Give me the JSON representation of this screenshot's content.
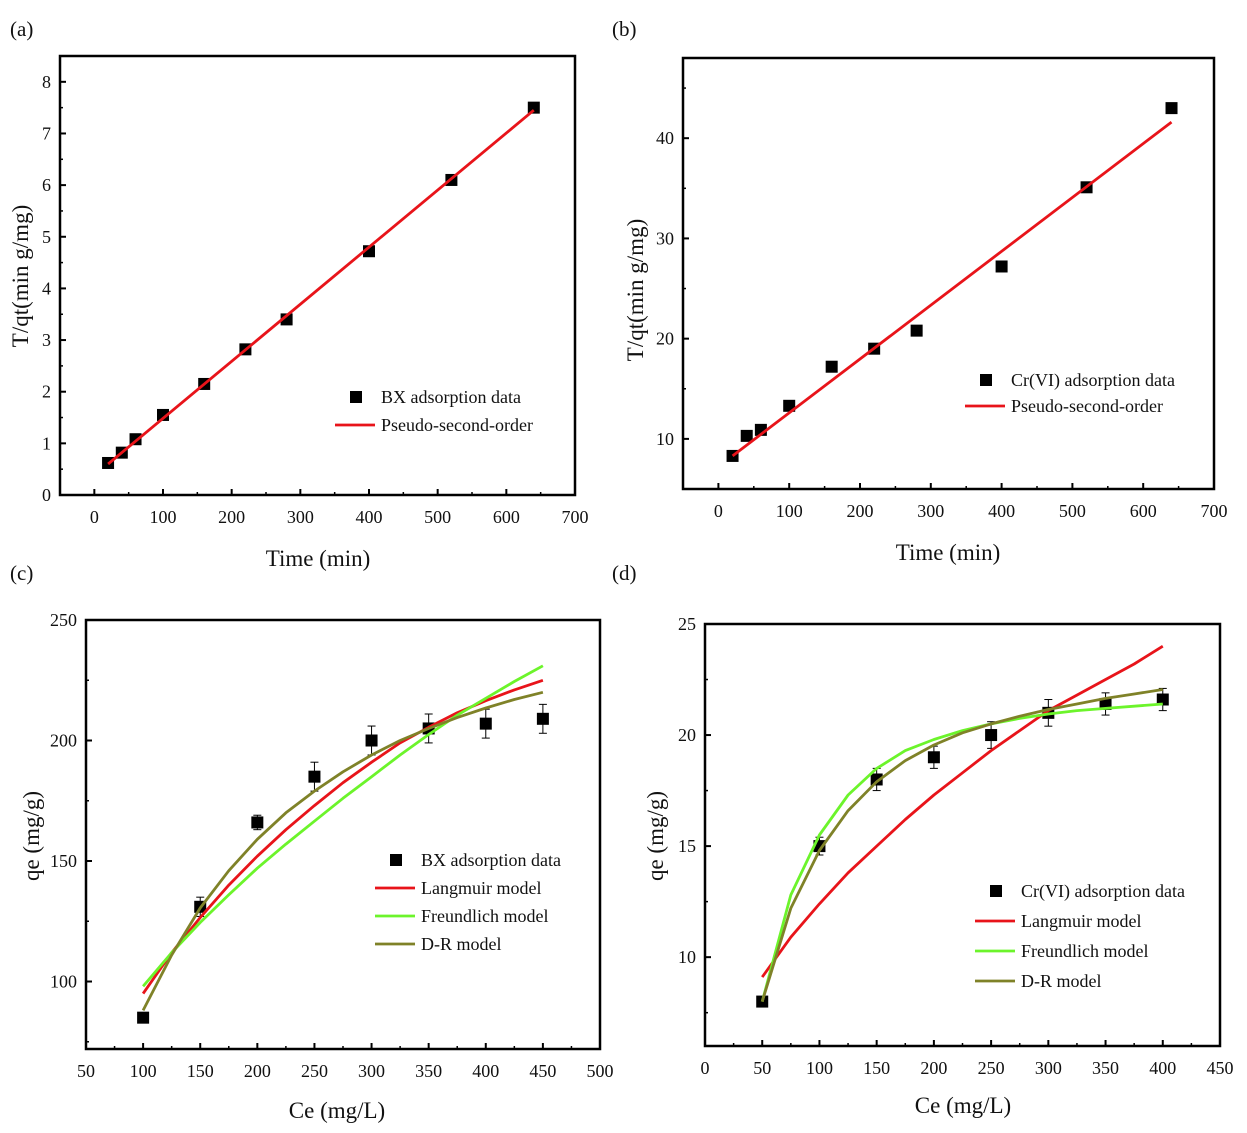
{
  "chart_data": [
    {
      "panel_label": "(a)",
      "type": "scatter",
      "xlabel": "Time (min)",
      "ylabel": "T/qt(min g/mg)",
      "xlim": [
        -50,
        700
      ],
      "ylim": [
        0,
        8.5
      ],
      "xticks": [
        0,
        100,
        200,
        300,
        400,
        500,
        600,
        700
      ],
      "yticks": [
        0,
        1,
        2,
        3,
        4,
        5,
        6,
        7,
        8
      ],
      "legend_position": "lower-right",
      "series": [
        {
          "name": "BX adsorption data",
          "kind": "scatter",
          "color": "#000000",
          "x": [
            20,
            40,
            60,
            100,
            160,
            220,
            280,
            400,
            520,
            640
          ],
          "y": [
            0.62,
            0.82,
            1.08,
            1.55,
            2.15,
            2.82,
            3.4,
            4.72,
            6.1,
            7.5
          ]
        },
        {
          "name": "Pseudo-second-order",
          "kind": "line",
          "color": "#e8141a",
          "x": [
            20,
            640
          ],
          "y": [
            0.6,
            7.45
          ]
        }
      ]
    },
    {
      "panel_label": "(b)",
      "type": "scatter",
      "xlabel": "Time (min)",
      "ylabel": "T/qt(min g/mg)",
      "xlim": [
        -50,
        700
      ],
      "ylim": [
        5,
        48
      ],
      "xticks": [
        0,
        100,
        200,
        300,
        400,
        500,
        600,
        700
      ],
      "yticks": [
        10,
        20,
        30,
        40
      ],
      "legend_position": "lower-right",
      "series": [
        {
          "name": "Cr(VI) adsorption data",
          "kind": "scatter",
          "color": "#000000",
          "x": [
            20,
            40,
            60,
            100,
            160,
            220,
            280,
            400,
            520,
            640
          ],
          "y": [
            8.3,
            10.3,
            10.9,
            13.3,
            17.2,
            19.0,
            20.8,
            27.2,
            35.1,
            43.0
          ]
        },
        {
          "name": "Pseudo-second-order",
          "kind": "line",
          "color": "#e8141a",
          "x": [
            20,
            640
          ],
          "y": [
            8.3,
            41.6
          ]
        }
      ]
    },
    {
      "panel_label": "(c)",
      "type": "scatter",
      "xlabel": "Ce (mg/L)",
      "ylabel": "qe (mg/g)",
      "xlim": [
        50,
        500
      ],
      "ylim": [
        72,
        250
      ],
      "xticks": [
        50,
        100,
        150,
        200,
        250,
        300,
        350,
        400,
        450,
        500
      ],
      "yticks": [
        100,
        150,
        200,
        250
      ],
      "legend_position": "lower-right",
      "series": [
        {
          "name": "BX adsorption data",
          "kind": "scatter",
          "color": "#000000",
          "x": [
            100,
            150,
            200,
            250,
            300,
            350,
            400,
            450
          ],
          "y": [
            85,
            131,
            166,
            185,
            200,
            205,
            207,
            209
          ],
          "err": [
            2,
            4,
            3,
            6,
            6,
            6,
            6,
            6
          ]
        },
        {
          "name": "Langmuir model",
          "kind": "line",
          "color": "#e8141a",
          "x": [
            100,
            125,
            150,
            175,
            200,
            225,
            250,
            275,
            300,
            325,
            350,
            375,
            400,
            425,
            450
          ],
          "y": [
            95,
            112,
            126.5,
            140,
            152,
            163,
            173,
            182.5,
            191,
            199,
            205.5,
            211.5,
            216.5,
            221,
            225
          ]
        },
        {
          "name": "Freundlich model",
          "kind": "line",
          "color": "#6cf42b",
          "x": [
            100,
            125,
            150,
            175,
            200,
            225,
            250,
            275,
            300,
            325,
            350,
            375,
            400,
            425,
            450
          ],
          "y": [
            98,
            112,
            124.5,
            136,
            147,
            157,
            166.5,
            176,
            185,
            194,
            202.5,
            210.5,
            217.5,
            224.5,
            231
          ]
        },
        {
          "name": "D-R model",
          "kind": "line",
          "color": "#7f8228",
          "x": [
            100,
            125,
            150,
            175,
            200,
            225,
            250,
            275,
            300,
            325,
            350,
            375,
            400,
            425,
            450
          ],
          "y": [
            88,
            111,
            130.5,
            146,
            159,
            170,
            179,
            187,
            194,
            200,
            205,
            209.5,
            213.5,
            217,
            220
          ]
        }
      ]
    },
    {
      "panel_label": "(d)",
      "type": "scatter",
      "xlabel": "Ce (mg/L)",
      "ylabel": "qe (mg/g)",
      "xlim": [
        0,
        450
      ],
      "ylim": [
        6,
        25
      ],
      "xticks": [
        0,
        50,
        100,
        150,
        200,
        250,
        300,
        350,
        400,
        450
      ],
      "yticks": [
        10,
        15,
        20,
        25
      ],
      "legend_position": "lower-right",
      "series": [
        {
          "name": "Cr(VI) adsorption data",
          "kind": "scatter",
          "color": "#000000",
          "x": [
            50,
            100,
            150,
            200,
            250,
            300,
            350,
            400
          ],
          "y": [
            8.0,
            15.0,
            18.0,
            19.0,
            20.0,
            21.0,
            21.4,
            21.6
          ],
          "err": [
            0.2,
            0.4,
            0.5,
            0.5,
            0.6,
            0.6,
            0.5,
            0.5
          ]
        },
        {
          "name": "Langmuir model",
          "kind": "line",
          "color": "#e8141a",
          "x": [
            50,
            75,
            100,
            125,
            150,
            175,
            200,
            225,
            250,
            275,
            300,
            325,
            350,
            375,
            400
          ],
          "y": [
            9.1,
            10.9,
            12.4,
            13.8,
            15.0,
            16.2,
            17.3,
            18.3,
            19.3,
            20.2,
            21.1,
            21.8,
            22.5,
            23.2,
            24.0
          ]
        },
        {
          "name": "Freundlich model",
          "kind": "line",
          "color": "#6cf42b",
          "x": [
            50,
            75,
            100,
            125,
            150,
            175,
            200,
            225,
            250,
            275,
            300,
            325,
            350,
            375,
            400
          ],
          "y": [
            8.0,
            12.8,
            15.5,
            17.3,
            18.5,
            19.3,
            19.8,
            20.2,
            20.5,
            20.75,
            20.95,
            21.1,
            21.2,
            21.3,
            21.4
          ]
        },
        {
          "name": "D-R model",
          "kind": "line",
          "color": "#7f8228",
          "x": [
            50,
            75,
            100,
            125,
            150,
            175,
            200,
            225,
            250,
            275,
            300,
            325,
            350,
            375,
            400
          ],
          "y": [
            8.0,
            12.2,
            14.8,
            16.6,
            17.9,
            18.85,
            19.55,
            20.1,
            20.5,
            20.85,
            21.15,
            21.4,
            21.65,
            21.85,
            22.05
          ]
        }
      ]
    }
  ]
}
